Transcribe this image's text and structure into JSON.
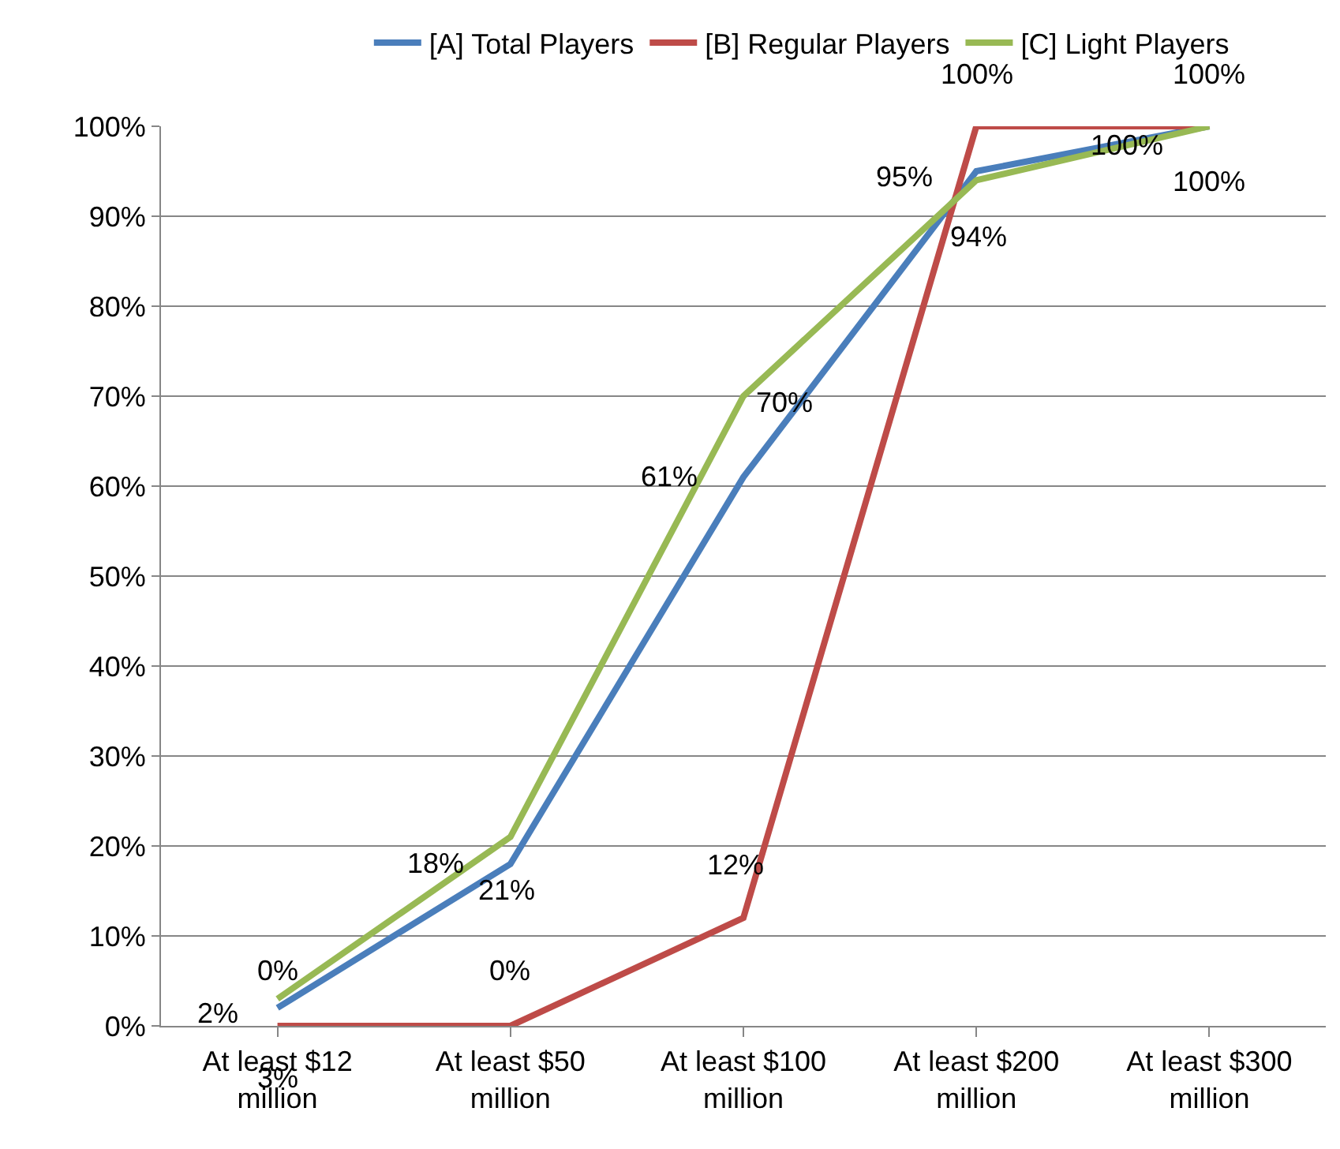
{
  "chart_data": {
    "type": "line",
    "categories": [
      "At least $12 million",
      "At least $50 million",
      "At least $100 million",
      "At least $200 million",
      "At least $300 million"
    ],
    "series": [
      {
        "name": "[A] Total Players",
        "color": "#4a7ebb",
        "values": [
          2,
          18,
          61,
          95,
          100
        ],
        "value_labels": [
          "2%",
          "18%",
          "61%",
          "95%",
          "100%"
        ]
      },
      {
        "name": "[B] Regular Players",
        "color": "#be4b48",
        "values": [
          0,
          0,
          12,
          100,
          100
        ],
        "value_labels": [
          "0%",
          "0%",
          "12%",
          "100%",
          "100%"
        ]
      },
      {
        "name": "[C] Light Players",
        "color": "#98b954",
        "values": [
          3,
          21,
          70,
          94,
          100
        ],
        "value_labels": [
          "3%",
          "21%",
          "70%",
          "94%",
          "100%"
        ]
      }
    ],
    "ylim": [
      0,
      100
    ],
    "yticks": [
      {
        "value": 0,
        "label": "0%"
      },
      {
        "value": 10,
        "label": "10%"
      },
      {
        "value": 20,
        "label": "20%"
      },
      {
        "value": 30,
        "label": "30%"
      },
      {
        "value": 40,
        "label": "40%"
      },
      {
        "value": 50,
        "label": "50%"
      },
      {
        "value": 60,
        "label": "60%"
      },
      {
        "value": 70,
        "label": "70%"
      },
      {
        "value": 80,
        "label": "80%"
      },
      {
        "value": 90,
        "label": "90%"
      },
      {
        "value": 100,
        "label": "100%"
      }
    ],
    "grid": "y",
    "legend": "top",
    "marker": "none",
    "line_style": "solid"
  }
}
